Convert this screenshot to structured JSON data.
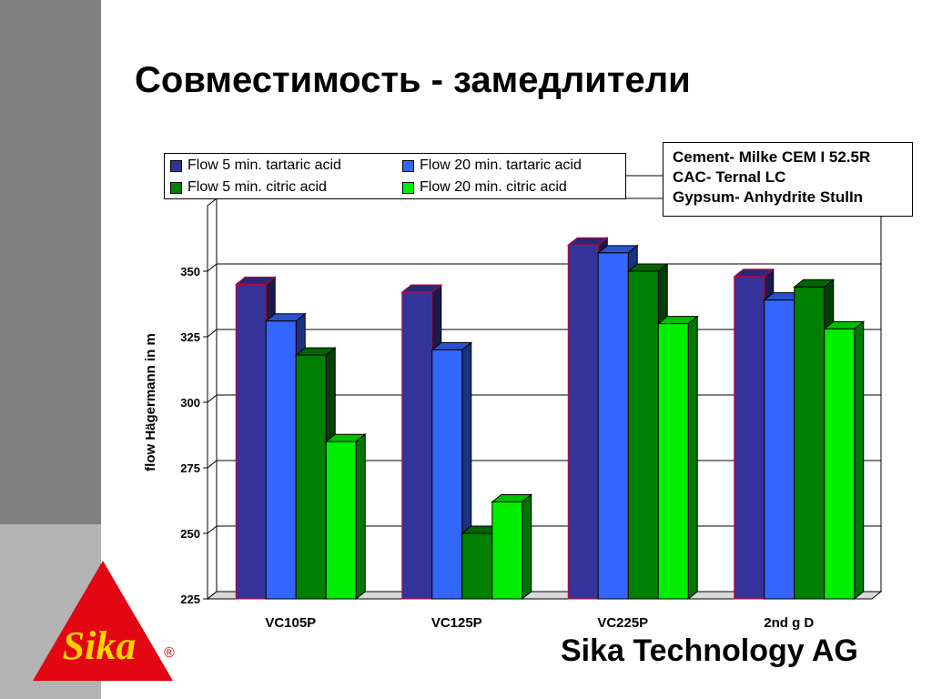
{
  "slide": {
    "title": "Совместимость - замедлители",
    "footer": "Sika Technology AG"
  },
  "info": {
    "lines": [
      "Cement- Milke CEM I 52.5R",
      "CAC- Ternal LC",
      "Gypsum- Anhydrite StulIn"
    ]
  },
  "logo": {
    "text": "Sika",
    "mark": "®"
  },
  "chart_data": {
    "type": "bar",
    "categories": [
      "VC105P",
      "VC125P",
      "VC225P",
      "2nd g D"
    ],
    "series": [
      {
        "name": "Flow 5 min. tartaric acid",
        "values": [
          345,
          342,
          360,
          348
        ],
        "color": "#333399"
      },
      {
        "name": "Flow 20 min. tartaric acid",
        "values": [
          331,
          320,
          357,
          339
        ],
        "color": "#3366ff"
      },
      {
        "name": "Flow 5 min. citric acid",
        "values": [
          318,
          250,
          350,
          344
        ],
        "color": "#008000"
      },
      {
        "name": "Flow 20 min. citric acid",
        "values": [
          285,
          262,
          330,
          328
        ],
        "color": "#00ee00"
      }
    ],
    "ylabel": "flow Hägermann in m",
    "ylim": [
      225,
      375
    ],
    "yticks": [
      225,
      250,
      275,
      300,
      325,
      350
    ],
    "grid": true,
    "legend": "top-left"
  }
}
